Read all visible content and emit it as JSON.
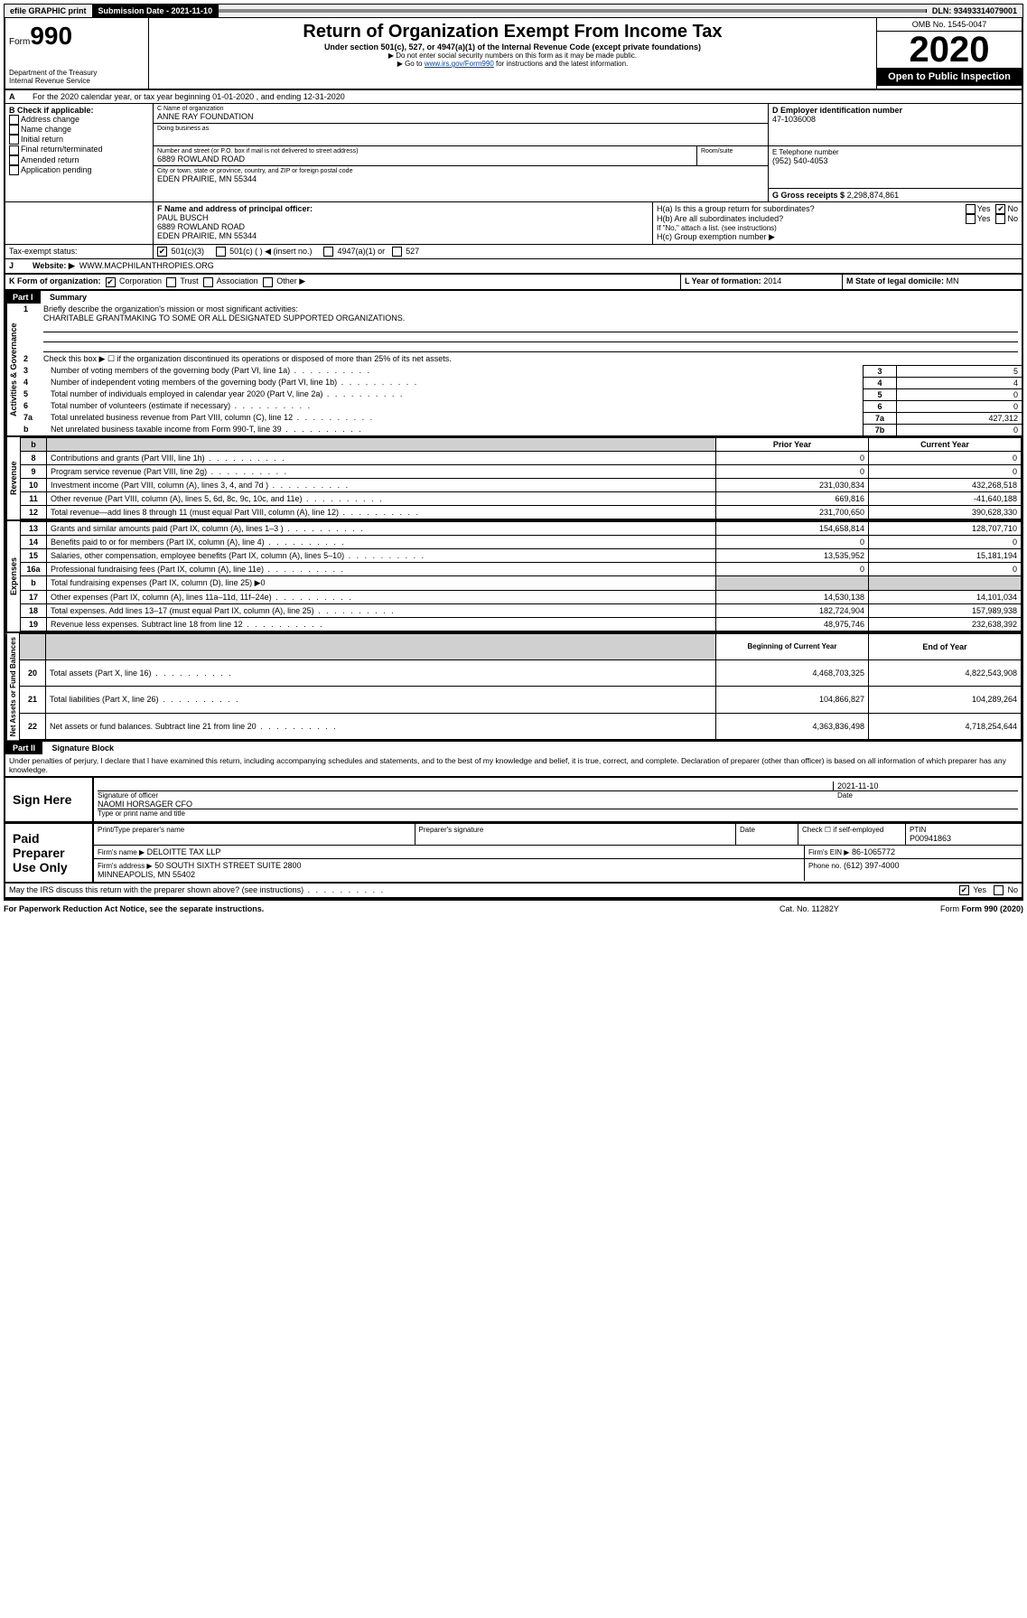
{
  "topbar": {
    "efile": "efile GRAPHIC print",
    "submission_label": "Submission Date - 2021-11-10",
    "dln": "DLN: 93493314079001"
  },
  "header": {
    "form_prefix": "Form",
    "form_num": "990",
    "dept": "Department of the Treasury",
    "irs": "Internal Revenue Service",
    "title": "Return of Organization Exempt From Income Tax",
    "subtitle": "Under section 501(c), 527, or 4947(a)(1) of the Internal Revenue Code (except private foundations)",
    "note1": "▶ Do not enter social security numbers on this form as it may be made public.",
    "note2_pre": "▶ Go to ",
    "note2_link": "www.irs.gov/Form990",
    "note2_post": " for instructions and the latest information.",
    "omb": "OMB No. 1545-0047",
    "year": "2020",
    "open": "Open to Public Inspection"
  },
  "period": {
    "text": "For the 2020 calendar year, or tax year beginning 01-01-2020   , and ending 12-31-2020"
  },
  "boxB": {
    "label": "B Check if applicable:",
    "opts": [
      "Address change",
      "Name change",
      "Initial return",
      "Final return/terminated",
      "Amended return",
      "Application pending"
    ]
  },
  "boxC": {
    "name_label": "C Name of organization",
    "name": "ANNE RAY FOUNDATION",
    "dba_label": "Doing business as",
    "addr_label": "Number and street (or P.O. box if mail is not delivered to street address)",
    "addr": "6889 ROWLAND ROAD",
    "room_label": "Room/suite",
    "city_label": "City or town, state or province, country, and ZIP or foreign postal code",
    "city": "EDEN PRAIRIE, MN  55344"
  },
  "boxD": {
    "label": "D Employer identification number",
    "val": "47-1036008"
  },
  "boxE": {
    "label": "E Telephone number",
    "val": "(952) 540-4053"
  },
  "boxG": {
    "label": "G Gross receipts $",
    "val": "2,298,874,861"
  },
  "boxF": {
    "label": "F  Name and address of principal officer:",
    "name": "PAUL BUSCH",
    "addr1": "6889 ROWLAND ROAD",
    "addr2": "EDEN PRAIRIE, MN  55344"
  },
  "boxH": {
    "a": "H(a)  Is this a group return for subordinates?",
    "b": "H(b)  Are all subordinates included?",
    "b_note": "If \"No,\" attach a list. (see instructions)",
    "c": "H(c)  Group exemption number ▶",
    "yes": "Yes",
    "no": "No"
  },
  "taxexempt": {
    "label": "Tax-exempt status:",
    "c3": "501(c)(3)",
    "c": "501(c) (  ) ◀ (insert no.)",
    "a1": "4947(a)(1) or",
    "s527": "527"
  },
  "boxI": {
    "label": "Website: ▶",
    "val": "WWW.MACPHILANTHROPIES.ORG"
  },
  "boxJ": {
    "label": "J"
  },
  "boxK": {
    "label": "K Form of organization:",
    "opts": [
      "Corporation",
      "Trust",
      "Association",
      "Other ▶"
    ]
  },
  "boxL": {
    "label": "L Year of formation:",
    "val": "2014"
  },
  "boxM": {
    "label": "M State of legal domicile:",
    "val": "MN"
  },
  "part1": {
    "title": "Part I",
    "subtitle": "Summary",
    "q1": "Briefly describe the organization's mission or most significant activities:",
    "q1val": "CHARITABLE GRANTMAKING TO SOME OR ALL DESIGNATED SUPPORTED ORGANIZATIONS.",
    "q2": "Check this box ▶ ☐  if the organization discontinued its operations or disposed of more than 25% of its net assets.",
    "rows_gov": [
      {
        "n": "3",
        "t": "Number of voting members of the governing body (Part VI, line 1a)",
        "box": "3",
        "v": "5"
      },
      {
        "n": "4",
        "t": "Number of independent voting members of the governing body (Part VI, line 1b)",
        "box": "4",
        "v": "4"
      },
      {
        "n": "5",
        "t": "Total number of individuals employed in calendar year 2020 (Part V, line 2a)",
        "box": "5",
        "v": "0"
      },
      {
        "n": "6",
        "t": "Total number of volunteers (estimate if necessary)",
        "box": "6",
        "v": "0"
      },
      {
        "n": "7a",
        "t": "Total unrelated business revenue from Part VIII, column (C), line 12",
        "box": "7a",
        "v": "427,312"
      },
      {
        "n": "b",
        "t": "Net unrelated business taxable income from Form 990-T, line 39",
        "box": "7b",
        "v": "0"
      }
    ],
    "col_prior": "Prior Year",
    "col_current": "Current Year",
    "col_bcy": "Beginning of Current Year",
    "col_eoy": "End of Year",
    "revenue": [
      {
        "n": "8",
        "t": "Contributions and grants (Part VIII, line 1h)",
        "p": "0",
        "c": "0"
      },
      {
        "n": "9",
        "t": "Program service revenue (Part VIII, line 2g)",
        "p": "0",
        "c": "0"
      },
      {
        "n": "10",
        "t": "Investment income (Part VIII, column (A), lines 3, 4, and 7d )",
        "p": "231,030,834",
        "c": "432,268,518"
      },
      {
        "n": "11",
        "t": "Other revenue (Part VIII, column (A), lines 5, 6d, 8c, 9c, 10c, and 11e)",
        "p": "669,816",
        "c": "-41,640,188"
      },
      {
        "n": "12",
        "t": "Total revenue—add lines 8 through 11 (must equal Part VIII, column (A), line 12)",
        "p": "231,700,650",
        "c": "390,628,330"
      }
    ],
    "expenses": [
      {
        "n": "13",
        "t": "Grants and similar amounts paid (Part IX, column (A), lines 1–3 )",
        "p": "154,658,814",
        "c": "128,707,710"
      },
      {
        "n": "14",
        "t": "Benefits paid to or for members (Part IX, column (A), line 4)",
        "p": "0",
        "c": "0"
      },
      {
        "n": "15",
        "t": "Salaries, other compensation, employee benefits (Part IX, column (A), lines 5–10)",
        "p": "13,535,952",
        "c": "15,181,194"
      },
      {
        "n": "16a",
        "t": "Professional fundraising fees (Part IX, column (A), line 11e)",
        "p": "0",
        "c": "0"
      },
      {
        "n": "b",
        "t": "Total fundraising expenses (Part IX, column (D), line 25) ▶0",
        "p": "",
        "c": "",
        "grey": true
      },
      {
        "n": "17",
        "t": "Other expenses (Part IX, column (A), lines 11a–11d, 11f–24e)",
        "p": "14,530,138",
        "c": "14,101,034"
      },
      {
        "n": "18",
        "t": "Total expenses. Add lines 13–17 (must equal Part IX, column (A), line 25)",
        "p": "182,724,904",
        "c": "157,989,938"
      },
      {
        "n": "19",
        "t": "Revenue less expenses. Subtract line 18 from line 12",
        "p": "48,975,746",
        "c": "232,638,392"
      }
    ],
    "netassets": [
      {
        "n": "20",
        "t": "Total assets (Part X, line 16)",
        "p": "4,468,703,325",
        "c": "4,822,543,908"
      },
      {
        "n": "21",
        "t": "Total liabilities (Part X, line 26)",
        "p": "104,866,827",
        "c": "104,289,264"
      },
      {
        "n": "22",
        "t": "Net assets or fund balances. Subtract line 21 from line 20",
        "p": "4,363,836,498",
        "c": "4,718,254,644"
      }
    ],
    "vlabels": {
      "gov": "Activities & Governance",
      "rev": "Revenue",
      "exp": "Expenses",
      "na": "Net Assets or Fund Balances"
    }
  },
  "part2": {
    "title": "Part II",
    "subtitle": "Signature Block",
    "perjury": "Under penalties of perjury, I declare that I have examined this return, including accompanying schedules and statements, and to the best of my knowledge and belief, it is true, correct, and complete. Declaration of preparer (other than officer) is based on all information of which preparer has any knowledge.",
    "sign_here": "Sign Here",
    "sig_officer": "Signature of officer",
    "sig_date": "2021-11-10",
    "date_label": "Date",
    "officer_name": "NAOMI HORSAGER CFO",
    "officer_title_label": "Type or print name and title",
    "paid": "Paid Preparer Use Only",
    "prep_name_label": "Print/Type preparer's name",
    "prep_sig_label": "Preparer's signature",
    "check_self": "Check ☐ if self-employed",
    "ptin_label": "PTIN",
    "ptin": "P00941863",
    "firm_name_label": "Firm's name    ▶",
    "firm_name": "DELOITTE TAX LLP",
    "firm_ein_label": "Firm's EIN ▶",
    "firm_ein": "86-1065772",
    "firm_addr_label": "Firm's address ▶",
    "firm_addr": "50 SOUTH SIXTH STREET SUITE 2800",
    "firm_city": "MINNEAPOLIS, MN  55402",
    "phone_label": "Phone no.",
    "phone": "(612) 397-4000",
    "discuss": "May the IRS discuss this return with the preparer shown above? (see instructions)",
    "yes": "Yes",
    "no": "No"
  },
  "footer": {
    "pra": "For Paperwork Reduction Act Notice, see the separate instructions.",
    "cat": "Cat. No. 11282Y",
    "form": "Form 990 (2020)"
  }
}
